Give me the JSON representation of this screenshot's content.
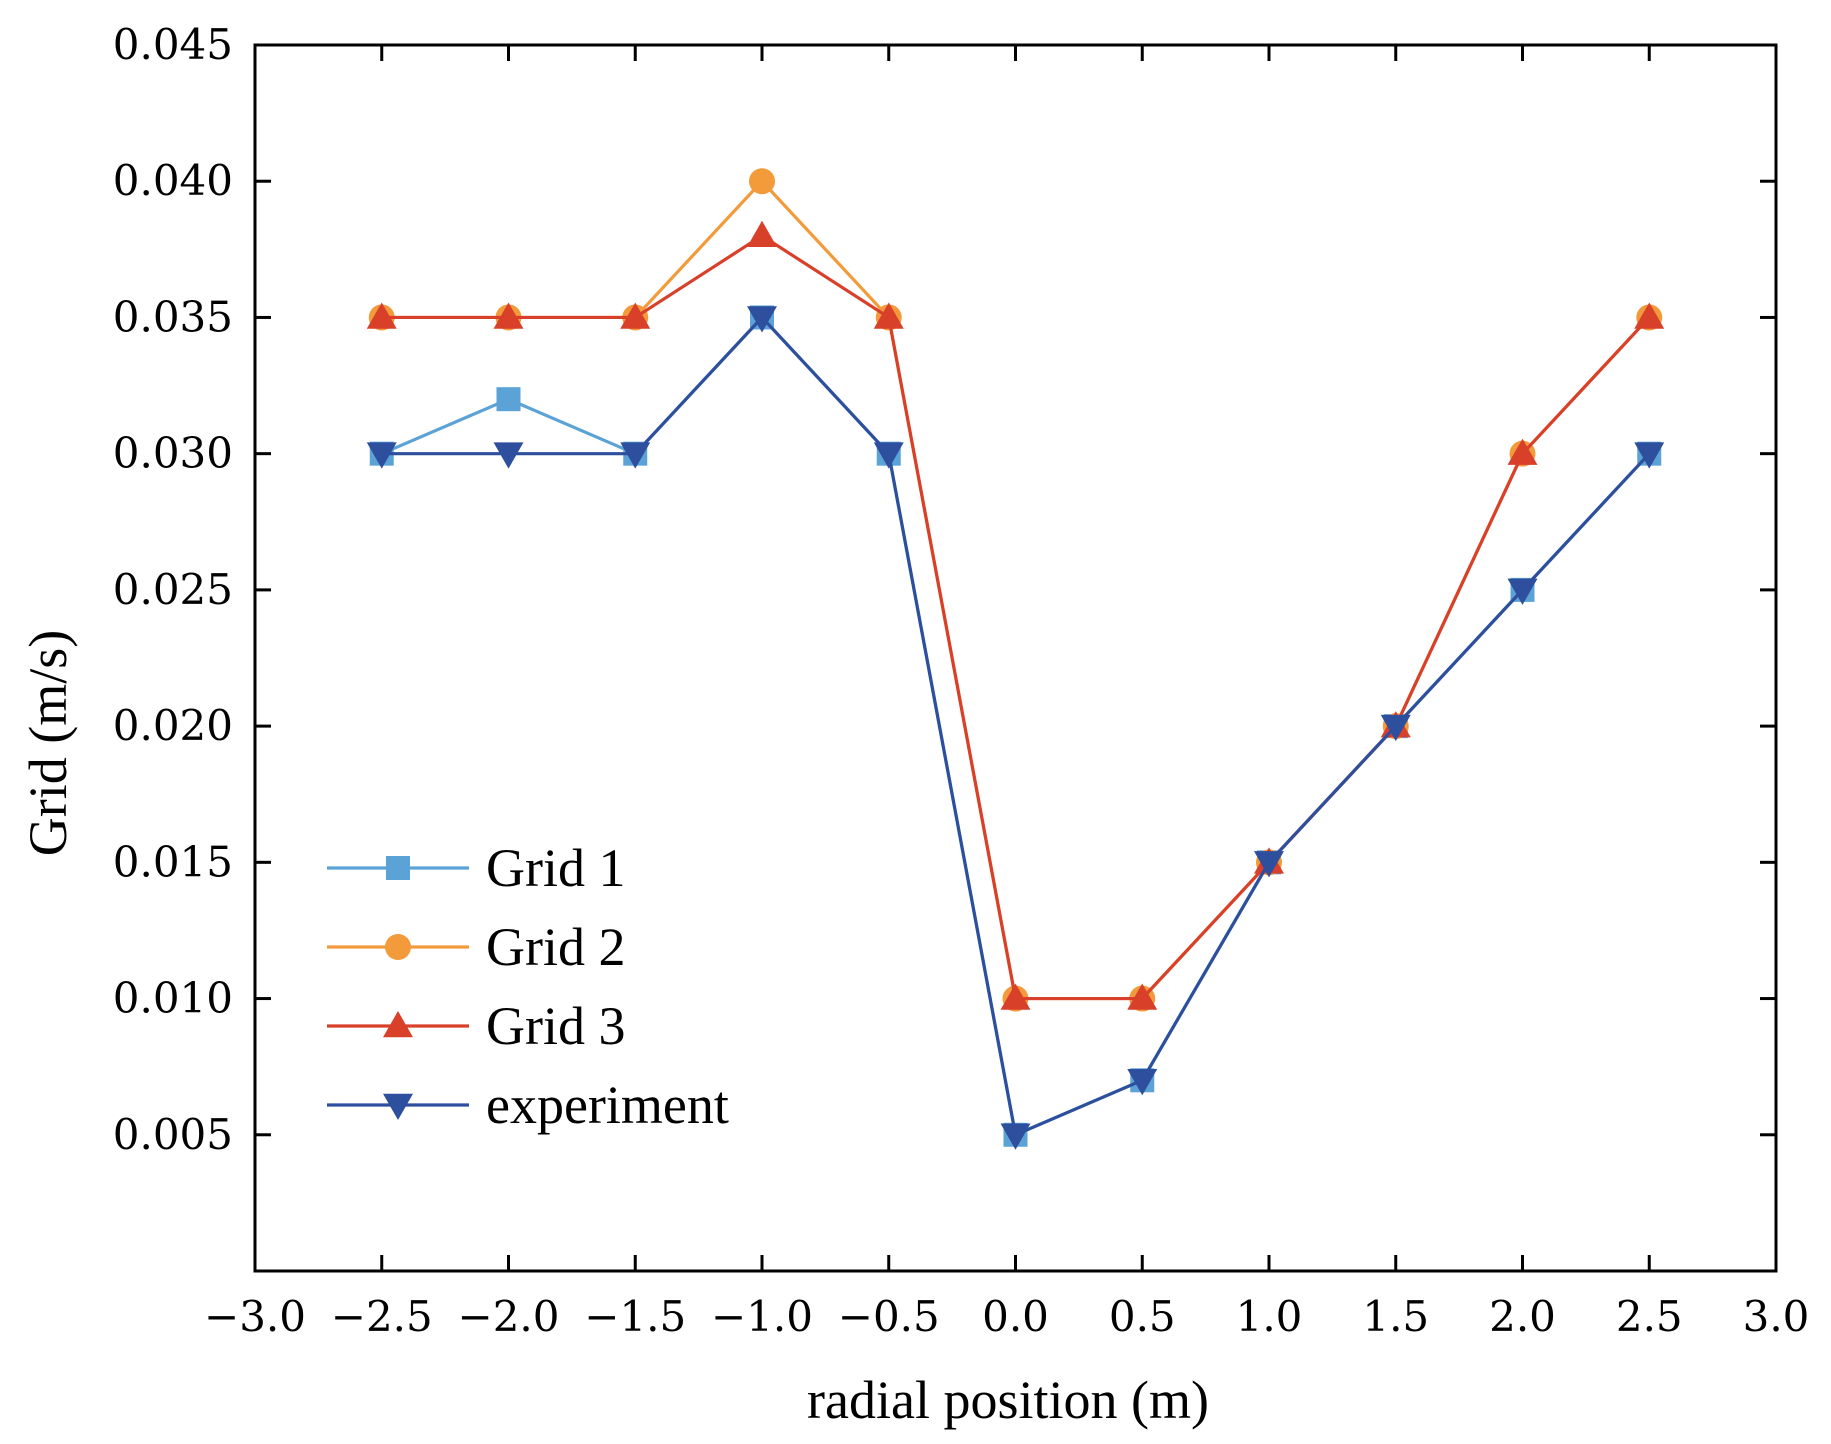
{
  "chart_data": {
    "type": "line",
    "title": "",
    "xlabel": "radial position (m)",
    "ylabel": "Grid (m/s)",
    "xlim": [
      -3.0,
      3.0
    ],
    "ylim": [
      0.0,
      0.045
    ],
    "x_ticks": [
      -3.0,
      -2.5,
      -2.0,
      -1.5,
      -1.0,
      -0.5,
      0.0,
      0.5,
      1.0,
      1.5,
      2.0,
      2.5,
      3.0
    ],
    "x_tick_labels": [
      "−3.0",
      "−2.5",
      "−2.0",
      "−1.5",
      "−1.0",
      "−0.5",
      "0.0",
      "0.5",
      "1.0",
      "1.5",
      "2.0",
      "2.5",
      "3.0"
    ],
    "y_ticks": [
      0.005,
      0.01,
      0.015,
      0.02,
      0.025,
      0.03,
      0.035,
      0.04,
      0.045
    ],
    "y_tick_labels": [
      "0.005",
      "0.010",
      "0.015",
      "0.020",
      "0.025",
      "0.030",
      "0.035",
      "0.040",
      "0.045"
    ],
    "grid": false,
    "legend_position": "lower-left",
    "x": [
      -2.5,
      -2.0,
      -1.5,
      -1.0,
      -0.5,
      0.0,
      0.5,
      1.0,
      1.5,
      2.0,
      2.5
    ],
    "series": [
      {
        "name": "Grid 1",
        "color": "#5ba3d6",
        "marker": "square",
        "values": [
          0.03,
          0.032,
          0.03,
          0.035,
          0.03,
          0.005,
          0.007,
          0.015,
          0.02,
          0.025,
          0.03
        ]
      },
      {
        "name": "Grid 2",
        "color": "#f39a3a",
        "marker": "circle",
        "values": [
          0.035,
          0.035,
          0.035,
          0.04,
          0.035,
          0.01,
          0.01,
          0.015,
          0.02,
          0.03,
          0.035
        ]
      },
      {
        "name": "Grid 3",
        "color": "#d9402a",
        "marker": "triangle-up",
        "values": [
          0.035,
          0.035,
          0.035,
          0.038,
          0.035,
          0.01,
          0.01,
          0.015,
          0.02,
          0.03,
          0.035
        ]
      },
      {
        "name": "experiment",
        "color": "#2d4f9e",
        "marker": "triangle-down",
        "values": [
          0.03,
          0.03,
          0.03,
          0.035,
          0.03,
          0.005,
          0.007,
          0.015,
          0.02,
          0.025,
          0.03
        ]
      }
    ]
  }
}
